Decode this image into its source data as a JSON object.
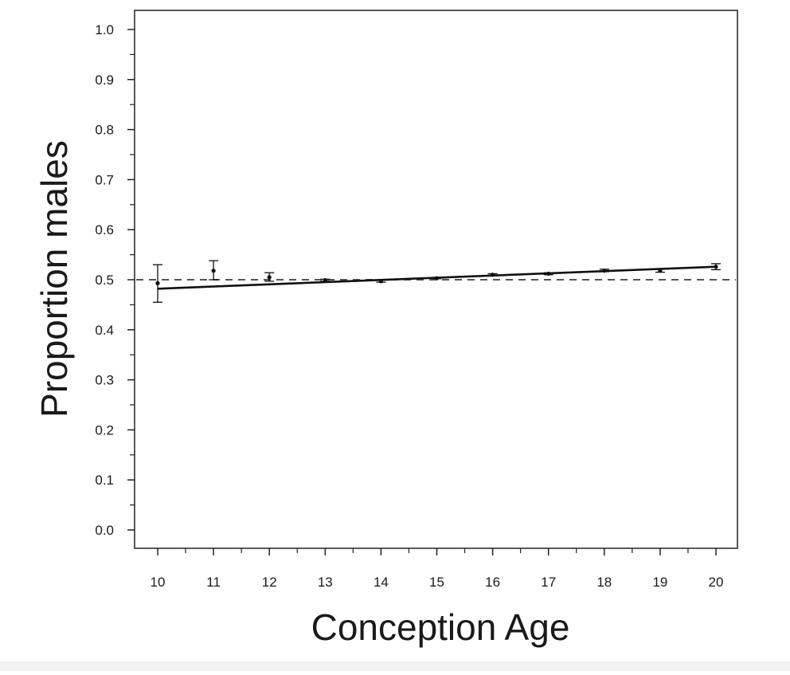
{
  "chart_data": {
    "type": "scatter",
    "title": "",
    "xlabel": "Conception Age",
    "ylabel": "Proportion males",
    "xlim": [
      10,
      20
    ],
    "ylim": [
      0.0,
      1.0
    ],
    "xticks": [
      "10",
      "11",
      "12",
      "13",
      "14",
      "15",
      "16",
      "17",
      "18",
      "19",
      "20"
    ],
    "yticks": [
      "0.0",
      "0.1",
      "0.2",
      "0.3",
      "0.4",
      "0.5",
      "0.6",
      "0.7",
      "0.8",
      "0.9",
      "1.0"
    ],
    "grid": false,
    "legend": "none",
    "points": [
      {
        "x": 10,
        "y": 0.493,
        "lower": 0.455,
        "upper": 0.53
      },
      {
        "x": 11,
        "y": 0.518,
        "lower": 0.5,
        "upper": 0.538
      },
      {
        "x": 12,
        "y": 0.505,
        "lower": 0.497,
        "upper": 0.514
      },
      {
        "x": 13,
        "y": 0.499,
        "lower": 0.497,
        "upper": 0.501
      },
      {
        "x": 14,
        "y": 0.497,
        "lower": 0.495,
        "upper": 0.499
      },
      {
        "x": 15,
        "y": 0.503,
        "lower": 0.502,
        "upper": 0.504
      },
      {
        "x": 16,
        "y": 0.51,
        "lower": 0.508,
        "upper": 0.512
      },
      {
        "x": 17,
        "y": 0.512,
        "lower": 0.51,
        "upper": 0.514
      },
      {
        "x": 18,
        "y": 0.518,
        "lower": 0.516,
        "upper": 0.521
      },
      {
        "x": 19,
        "y": 0.518,
        "lower": 0.515,
        "upper": 0.522
      },
      {
        "x": 20,
        "y": 0.526,
        "lower": 0.52,
        "upper": 0.532
      }
    ],
    "fit_line": {
      "x": [
        10,
        20
      ],
      "y": [
        0.482,
        0.526
      ]
    },
    "reference_line": {
      "y": 0.5,
      "style": "dashed"
    }
  }
}
